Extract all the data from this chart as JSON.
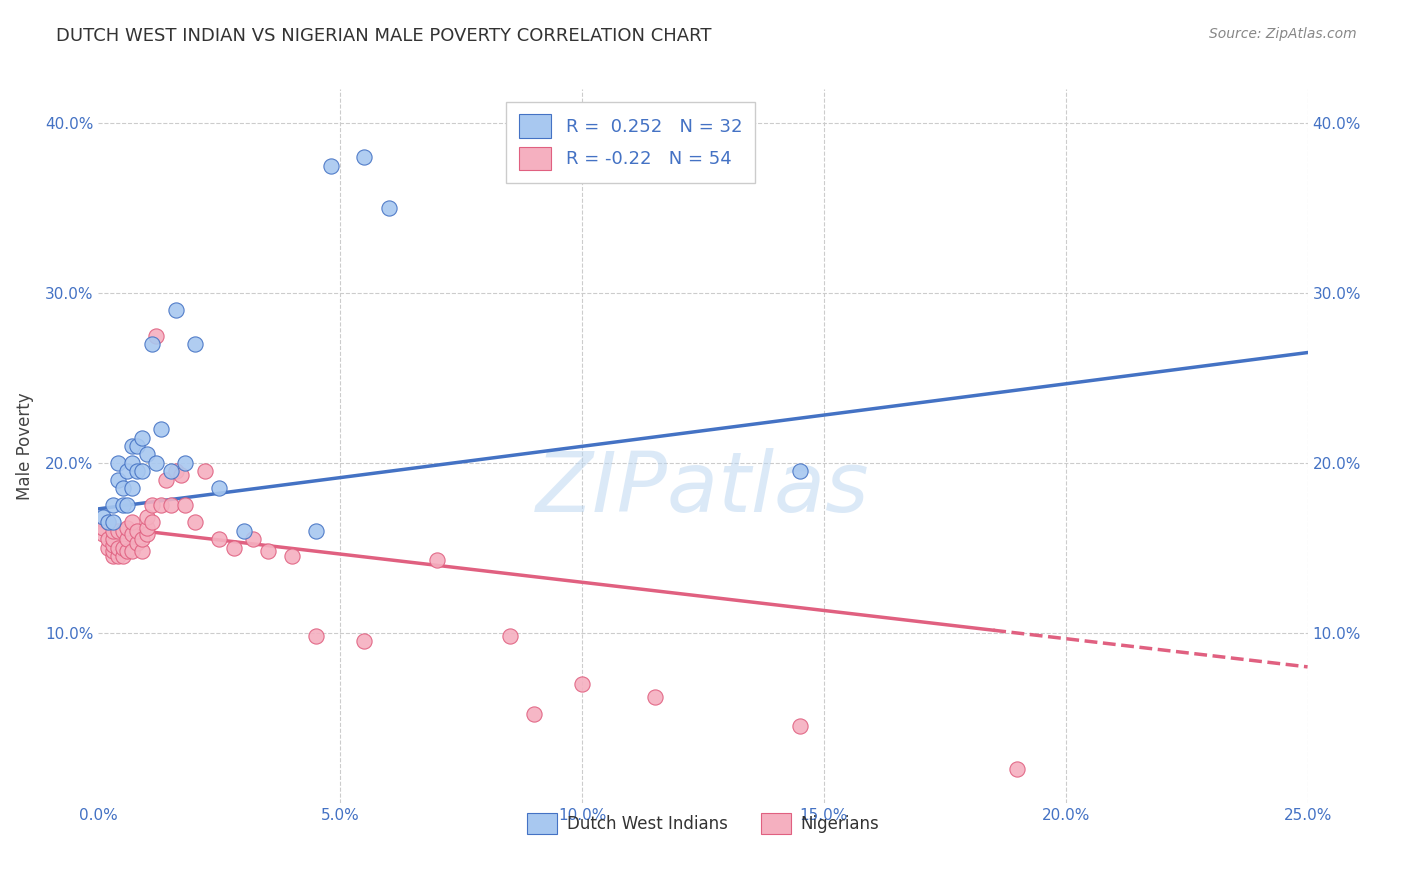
{
  "title": "DUTCH WEST INDIAN VS NIGERIAN MALE POVERTY CORRELATION CHART",
  "source": "Source: ZipAtlas.com",
  "ylabel": "Male Poverty",
  "xlim": [
    0,
    0.25
  ],
  "ylim": [
    0,
    0.42
  ],
  "xticks": [
    0.0,
    0.05,
    0.1,
    0.15,
    0.2,
    0.25
  ],
  "xtick_labels": [
    "0.0%",
    "5.0%",
    "10.0%",
    "15.0%",
    "20.0%",
    "25.0%"
  ],
  "yticks": [
    0.0,
    0.1,
    0.2,
    0.3,
    0.4
  ],
  "ytick_labels": [
    "",
    "10.0%",
    "20.0%",
    "30.0%",
    "40.0%"
  ],
  "blue_R": 0.252,
  "blue_N": 32,
  "pink_R": -0.22,
  "pink_N": 54,
  "blue_color": "#A8C8F0",
  "pink_color": "#F5B0C0",
  "blue_line_color": "#4472C4",
  "pink_line_color": "#E06080",
  "watermark": "ZIPatlas",
  "legend_label_blue": "Dutch West Indians",
  "legend_label_pink": "Nigerians",
  "blue_points_x": [
    0.001,
    0.002,
    0.003,
    0.003,
    0.004,
    0.004,
    0.005,
    0.005,
    0.006,
    0.006,
    0.007,
    0.007,
    0.007,
    0.008,
    0.008,
    0.009,
    0.009,
    0.01,
    0.011,
    0.012,
    0.013,
    0.015,
    0.016,
    0.018,
    0.02,
    0.025,
    0.03,
    0.045,
    0.048,
    0.055,
    0.06,
    0.145
  ],
  "blue_points_y": [
    0.168,
    0.165,
    0.165,
    0.175,
    0.19,
    0.2,
    0.175,
    0.185,
    0.175,
    0.195,
    0.185,
    0.2,
    0.21,
    0.195,
    0.21,
    0.195,
    0.215,
    0.205,
    0.27,
    0.2,
    0.22,
    0.195,
    0.29,
    0.2,
    0.27,
    0.185,
    0.16,
    0.16,
    0.375,
    0.38,
    0.35,
    0.195
  ],
  "pink_points_x": [
    0.001,
    0.001,
    0.002,
    0.002,
    0.002,
    0.003,
    0.003,
    0.003,
    0.003,
    0.003,
    0.004,
    0.004,
    0.004,
    0.005,
    0.005,
    0.005,
    0.006,
    0.006,
    0.006,
    0.007,
    0.007,
    0.007,
    0.008,
    0.008,
    0.009,
    0.009,
    0.01,
    0.01,
    0.01,
    0.011,
    0.011,
    0.012,
    0.013,
    0.014,
    0.015,
    0.016,
    0.017,
    0.018,
    0.02,
    0.022,
    0.025,
    0.028,
    0.032,
    0.035,
    0.04,
    0.045,
    0.055,
    0.07,
    0.085,
    0.09,
    0.1,
    0.115,
    0.145,
    0.19
  ],
  "pink_points_y": [
    0.158,
    0.162,
    0.15,
    0.155,
    0.165,
    0.145,
    0.148,
    0.152,
    0.155,
    0.16,
    0.145,
    0.15,
    0.16,
    0.145,
    0.15,
    0.16,
    0.148,
    0.155,
    0.162,
    0.148,
    0.158,
    0.165,
    0.153,
    0.16,
    0.148,
    0.155,
    0.158,
    0.162,
    0.168,
    0.165,
    0.175,
    0.275,
    0.175,
    0.19,
    0.175,
    0.195,
    0.193,
    0.175,
    0.165,
    0.195,
    0.155,
    0.15,
    0.155,
    0.148,
    0.145,
    0.098,
    0.095,
    0.143,
    0.098,
    0.052,
    0.07,
    0.062,
    0.045,
    0.02
  ],
  "blue_line_x": [
    0.0,
    0.25
  ],
  "blue_line_y": [
    0.173,
    0.265
  ],
  "pink_line_x": [
    0.0,
    0.25
  ],
  "pink_line_y": [
    0.163,
    0.08
  ],
  "pink_line_solid_end": 0.185
}
